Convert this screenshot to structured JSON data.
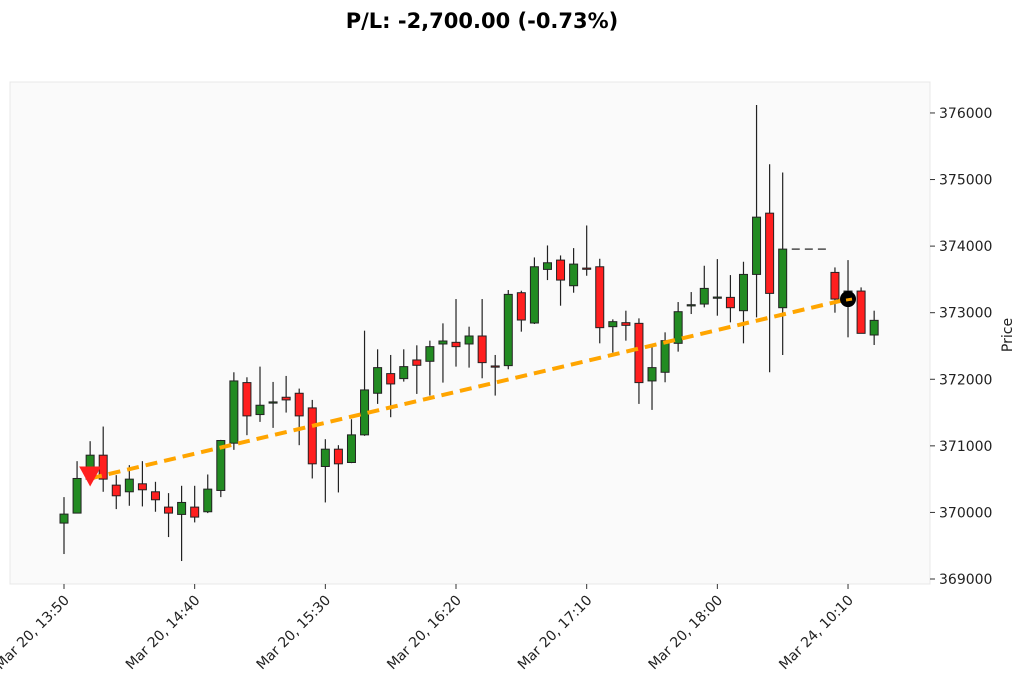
{
  "chart_data": {
    "type": "candlestick",
    "title": "P/L: -2,700.00 (-0.73%)",
    "xlabel": "",
    "ylabel": "Price",
    "ylim": [
      368925,
      376465
    ],
    "y_ticks": [
      369000,
      370000,
      371000,
      372000,
      373000,
      374000,
      375000,
      376000
    ],
    "y_tick_labels": [
      "369000",
      "370000",
      "371000",
      "372000",
      "373000",
      "374000",
      "375000",
      "376000"
    ],
    "y_axis_side": "right",
    "x_ticks": [
      {
        "index": 0,
        "label": "Mar 20, 13:50"
      },
      {
        "index": 10,
        "label": "Mar 20, 14:40"
      },
      {
        "index": 20,
        "label": "Mar 20, 15:30"
      },
      {
        "index": 30,
        "label": "Mar 20, 16:20"
      },
      {
        "index": 40,
        "label": "Mar 20, 17:10"
      },
      {
        "index": 50,
        "label": "Mar 20, 18:00"
      },
      {
        "index": 60,
        "label": "Mar 24, 10:10"
      }
    ],
    "grid": false,
    "colors": {
      "up": "#228b22",
      "down": "#ff1f1f",
      "trade_line": "#ffa500",
      "entry_marker": "#ff1f1f",
      "exit_marker": "#000000",
      "background": "#fafafa"
    },
    "ohlc_columns": [
      "open",
      "high",
      "low",
      "close"
    ],
    "candles": [
      [
        369840,
        370230,
        369375,
        369975
      ],
      [
        369990,
        370770,
        369990,
        370510
      ],
      [
        370500,
        371070,
        370480,
        370860
      ],
      [
        370860,
        371290,
        370310,
        370500
      ],
      [
        370410,
        370560,
        370050,
        370250
      ],
      [
        370310,
        370710,
        370100,
        370500
      ],
      [
        370430,
        370770,
        370090,
        370340
      ],
      [
        370310,
        370460,
        370010,
        370190
      ],
      [
        370080,
        370290,
        369630,
        369990
      ],
      [
        369970,
        370400,
        369270,
        370150
      ],
      [
        370080,
        370400,
        369850,
        369930
      ],
      [
        370010,
        370570,
        369990,
        370350
      ],
      [
        370330,
        371090,
        370230,
        371080
      ],
      [
        371040,
        372105,
        370940,
        371975
      ],
      [
        371950,
        372030,
        371160,
        371450
      ],
      [
        371470,
        372190,
        371360,
        371610
      ],
      [
        371650,
        371960,
        371270,
        371660
      ],
      [
        371730,
        372050,
        371500,
        371690
      ],
      [
        371790,
        371860,
        371010,
        371450
      ],
      [
        371570,
        371690,
        370510,
        370730
      ],
      [
        370690,
        371100,
        370150,
        370950
      ],
      [
        370950,
        371010,
        370300,
        370730
      ],
      [
        370750,
        371400,
        370740,
        371165
      ],
      [
        371165,
        372730,
        371150,
        371840
      ],
      [
        371790,
        372450,
        371630,
        372175
      ],
      [
        372085,
        372365,
        371430,
        371930
      ],
      [
        372010,
        372450,
        371965,
        372190
      ],
      [
        372290,
        372510,
        371780,
        372210
      ],
      [
        372270,
        372580,
        371755,
        372490
      ],
      [
        372530,
        372840,
        371950,
        372575
      ],
      [
        372555,
        373205,
        372190,
        372490
      ],
      [
        372530,
        372790,
        372175,
        372650
      ],
      [
        372650,
        373205,
        372015,
        372250
      ],
      [
        372200,
        372365,
        371755,
        372190
      ],
      [
        372205,
        373340,
        372150,
        373275
      ],
      [
        373300,
        373330,
        372715,
        372890
      ],
      [
        372845,
        373830,
        372830,
        373690
      ],
      [
        373650,
        374010,
        373490,
        373750
      ],
      [
        373790,
        373860,
        373105,
        373490
      ],
      [
        373405,
        373970,
        373300,
        373730
      ],
      [
        373670,
        374310,
        373555,
        373660
      ],
      [
        373690,
        373810,
        372540,
        372775
      ],
      [
        372790,
        372900,
        372400,
        372865
      ],
      [
        372850,
        373030,
        372580,
        372810
      ],
      [
        372840,
        372915,
        371630,
        371950
      ],
      [
        371975,
        372490,
        371540,
        372175
      ],
      [
        372105,
        372705,
        371955,
        372580
      ],
      [
        372540,
        373160,
        372415,
        373015
      ],
      [
        373110,
        373310,
        372980,
        373120
      ],
      [
        373130,
        373705,
        373080,
        373365
      ],
      [
        373230,
        373805,
        372955,
        373235
      ],
      [
        373230,
        373565,
        372855,
        373075
      ],
      [
        373030,
        373765,
        372540,
        373575
      ],
      [
        373575,
        376120,
        372930,
        374435
      ],
      [
        374495,
        375230,
        372105,
        373290
      ],
      [
        373075,
        375105,
        372365,
        373955
      ],
      [
        373955,
        373955,
        373955,
        373955
      ],
      [
        373955,
        373955,
        373955,
        373955
      ],
      [
        373955,
        373955,
        373955,
        373955
      ],
      [
        373605,
        373680,
        373000,
        373205
      ],
      [
        373205,
        373790,
        372630,
        373325
      ],
      [
        373325,
        373380,
        372690,
        372690
      ],
      [
        372665,
        373030,
        372515,
        372885
      ]
    ],
    "trade": {
      "entry": {
        "index": 2,
        "price": 370510,
        "marker": "triangle-down"
      },
      "exit": {
        "index": 60,
        "price": 373205,
        "marker": "circle"
      }
    }
  }
}
